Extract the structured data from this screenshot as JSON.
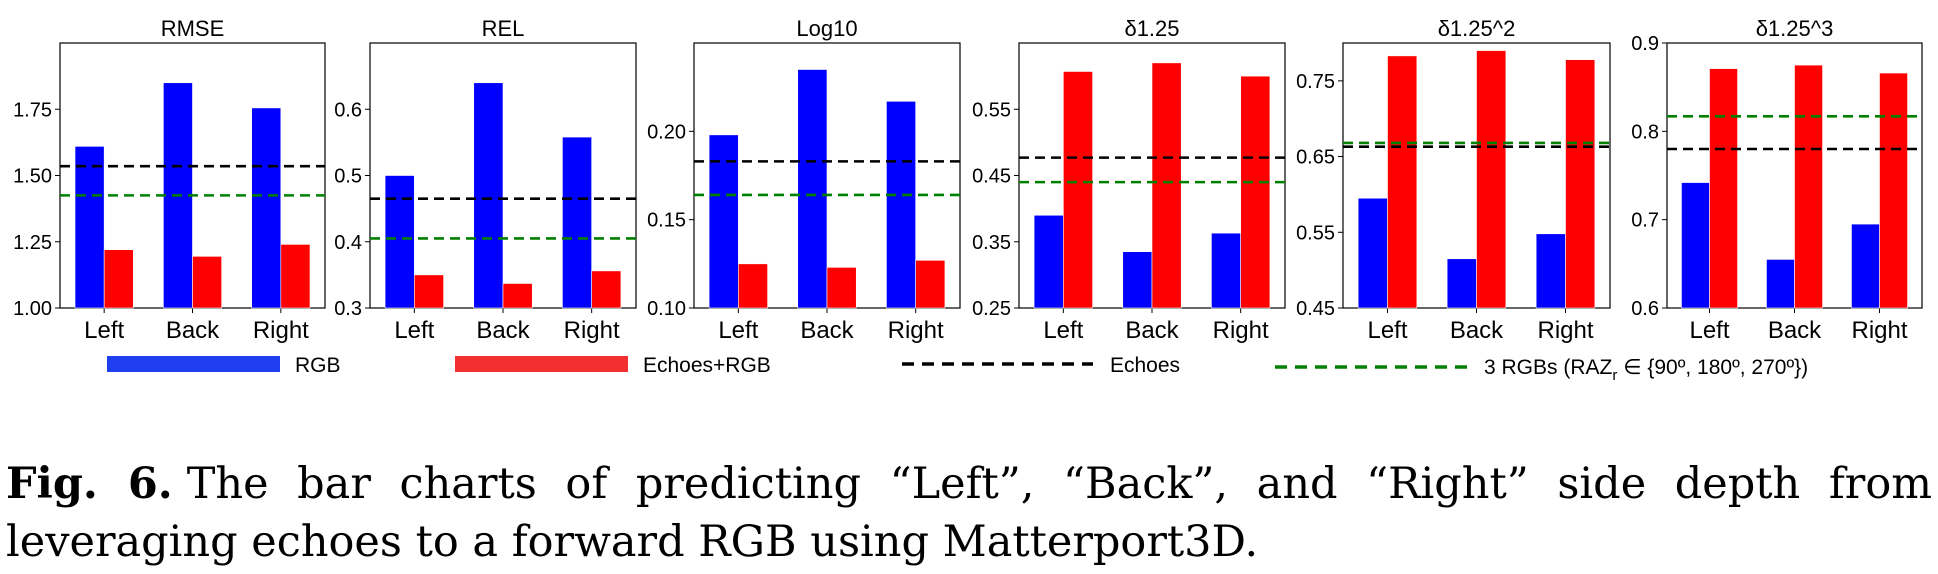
{
  "legend": {
    "rgb": "RGB",
    "echoes_rgb": "Echoes+RGB",
    "echoes": "Echoes",
    "three_rgbs_prefix": "3 RGBs (RAZ",
    "three_rgbs_sub": "r",
    "three_rgbs_suffix": " ∈ {90º, 180º, 270º})"
  },
  "colors": {
    "rgb": "#0000ff",
    "echoes_rgb": "#ff0000",
    "echoes": "#000000",
    "three_rgbs": "#008000",
    "legend_rgb": "#1f3ff0",
    "legend_echoes_rgb": "#f23030"
  },
  "caption": {
    "label": "Fig. 6.",
    "text": "The bar charts of predicting “Left”, “Back”, and “Right” side depth from leveraging echoes to a forward RGB using Matterport3D."
  },
  "chart_data": [
    {
      "type": "bar",
      "title": "RMSE",
      "categories": [
        "Left",
        "Back",
        "Right"
      ],
      "series": [
        {
          "name": "RGB",
          "values": [
            1.61,
            1.85,
            1.755
          ]
        },
        {
          "name": "Echoes+RGB",
          "values": [
            1.22,
            1.195,
            1.24
          ]
        }
      ],
      "reference_lines": {
        "Echoes": 1.535,
        "3 RGBs": 1.425
      },
      "ylim": [
        1.0,
        2.0
      ],
      "yticks": [
        1.0,
        1.25,
        1.5,
        1.75
      ],
      "ytick_labels": [
        "1.00",
        "1.25",
        "1.50",
        "1.75"
      ]
    },
    {
      "type": "bar",
      "title": "REL",
      "categories": [
        "Left",
        "Back",
        "Right"
      ],
      "series": [
        {
          "name": "RGB",
          "values": [
            0.5,
            0.64,
            0.558
          ]
        },
        {
          "name": "Echoes+RGB",
          "values": [
            0.35,
            0.337,
            0.356
          ]
        }
      ],
      "reference_lines": {
        "Echoes": 0.465,
        "3 RGBs": 0.405
      },
      "ylim": [
        0.3,
        0.7
      ],
      "yticks": [
        0.3,
        0.4,
        0.5,
        0.6
      ],
      "ytick_labels": [
        "0.3",
        "0.4",
        "0.5",
        "0.6"
      ]
    },
    {
      "type": "bar",
      "title": "Log10",
      "categories": [
        "Left",
        "Back",
        "Right"
      ],
      "series": [
        {
          "name": "RGB",
          "values": [
            0.198,
            0.235,
            0.217
          ]
        },
        {
          "name": "Echoes+RGB",
          "values": [
            0.125,
            0.123,
            0.127
          ]
        }
      ],
      "reference_lines": {
        "Echoes": 0.183,
        "3 RGBs": 0.164
      },
      "ylim": [
        0.1,
        0.25
      ],
      "yticks": [
        0.1,
        0.15,
        0.2
      ],
      "ytick_labels": [
        "0.10",
        "0.15",
        "0.20"
      ]
    },
    {
      "type": "bar",
      "title": "δ1.25",
      "categories": [
        "Left",
        "Back",
        "Right"
      ],
      "series": [
        {
          "name": "RGB",
          "values": [
            0.39,
            0.335,
            0.363
          ]
        },
        {
          "name": "Echoes+RGB",
          "values": [
            0.607,
            0.62,
            0.6
          ]
        }
      ],
      "reference_lines": {
        "Echoes": 0.477,
        "3 RGBs": 0.44
      },
      "ylim": [
        0.25,
        0.65
      ],
      "yticks": [
        0.25,
        0.35,
        0.45,
        0.55
      ],
      "ytick_labels": [
        "0.25",
        "0.35",
        "0.45",
        "0.55"
      ]
    },
    {
      "type": "bar",
      "title": "δ1.25^2",
      "categories": [
        "Left",
        "Back",
        "Right"
      ],
      "series": [
        {
          "name": "RGB",
          "values": [
            0.595,
            0.515,
            0.548
          ]
        },
        {
          "name": "Echoes+RGB",
          "values": [
            0.783,
            0.79,
            0.778
          ]
        }
      ],
      "reference_lines": {
        "Echoes": 0.663,
        "3 RGBs": 0.668
      },
      "ylim": [
        0.45,
        0.8
      ],
      "yticks": [
        0.45,
        0.55,
        0.65,
        0.75
      ],
      "ytick_labels": [
        "0.45",
        "0.55",
        "0.65",
        "0.75"
      ]
    },
    {
      "type": "bar",
      "title": "δ1.25^3",
      "categories": [
        "Left",
        "Back",
        "Right"
      ],
      "series": [
        {
          "name": "RGB",
          "values": [
            0.742,
            0.655,
            0.695
          ]
        },
        {
          "name": "Echoes+RGB",
          "values": [
            0.871,
            0.875,
            0.866
          ]
        }
      ],
      "reference_lines": {
        "Echoes": 0.78,
        "3 RGBs": 0.817
      },
      "ylim": [
        0.6,
        0.9
      ],
      "yticks": [
        0.6,
        0.7,
        0.8,
        0.9
      ],
      "ytick_labels": [
        "0.6",
        "0.7",
        "0.8",
        "0.9"
      ]
    }
  ]
}
